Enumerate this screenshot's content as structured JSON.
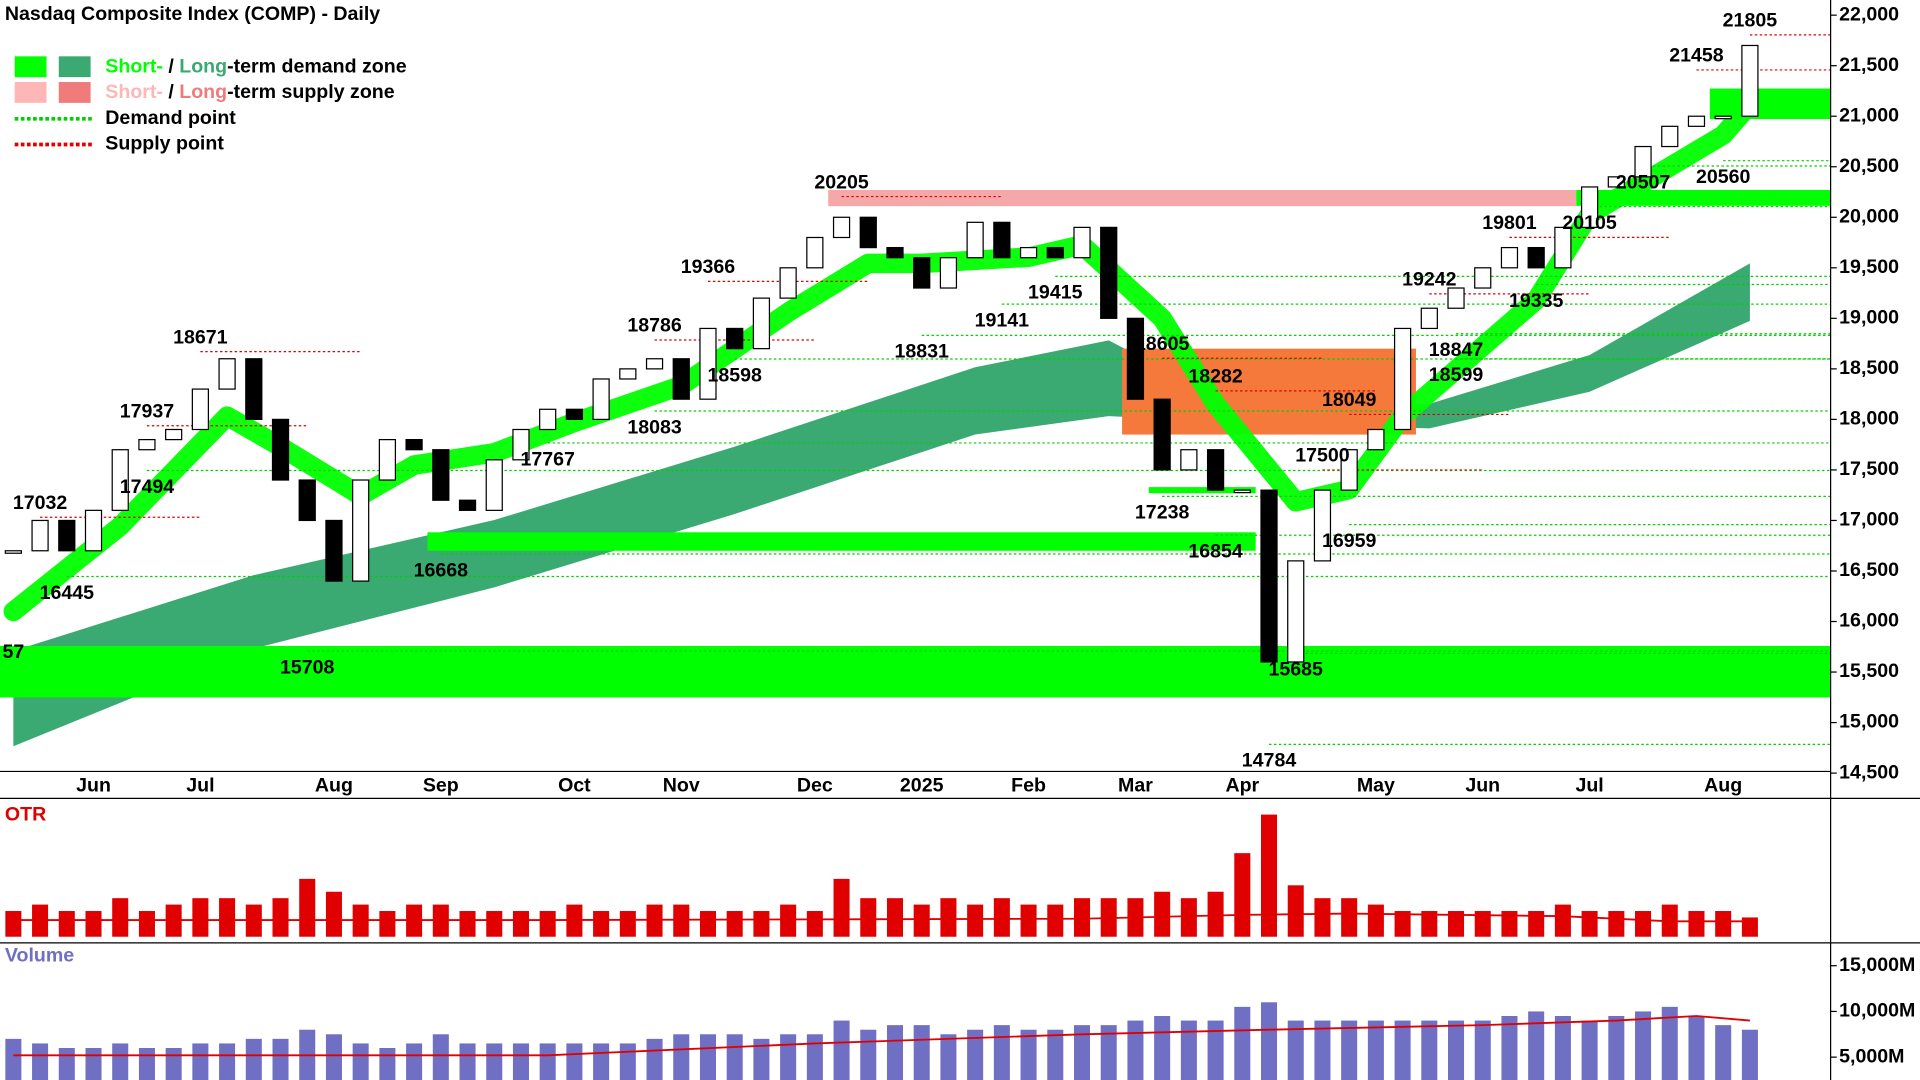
{
  "chart_data": [
    {
      "type": "candlestick",
      "title": "Nasdaq Composite Index (COMP) - Daily",
      "legend": [
        {
          "parts": [
            "Short-",
            " / ",
            "Long",
            "-term demand zone"
          ],
          "colors": [
            "#00ff00",
            "#3aaa72"
          ]
        },
        {
          "parts": [
            "Short-",
            " / ",
            "Long",
            "-term supply zone"
          ],
          "colors": [
            "#ffb6b6",
            "#f07b7b"
          ]
        },
        {
          "parts": [
            "Demand point"
          ],
          "colors": [
            "#00d000"
          ]
        },
        {
          "parts": [
            "Supply point"
          ],
          "colors": [
            "#e00000"
          ]
        }
      ],
      "categories": [
        null,
        null,
        null,
        "Jun",
        null,
        null,
        null,
        "Jul",
        null,
        null,
        null,
        null,
        "Aug",
        null,
        null,
        null,
        "Sep",
        null,
        null,
        null,
        null,
        "Oct",
        null,
        null,
        null,
        "Nov",
        null,
        null,
        null,
        null,
        "Dec",
        null,
        null,
        null,
        "2025",
        null,
        null,
        null,
        "Feb",
        null,
        null,
        null,
        "Mar",
        null,
        null,
        null,
        "Apr",
        null,
        null,
        null,
        null,
        "May",
        null,
        null,
        null,
        "Jun",
        null,
        null,
        null,
        "Jul",
        null,
        null,
        null,
        null,
        "Aug",
        null
      ],
      "values": [
        16700,
        17000,
        16700,
        17100,
        17700,
        17800,
        17900,
        18300,
        18600,
        18000,
        17400,
        17000,
        16400,
        17400,
        17800,
        17700,
        17200,
        17100,
        17600,
        17900,
        18100,
        18000,
        18400,
        18500,
        18600,
        18200,
        18900,
        18700,
        19200,
        19500,
        19800,
        20000,
        19700,
        19600,
        19300,
        19600,
        19950,
        19600,
        19700,
        19600,
        19900,
        19000,
        18200,
        17500,
        17700,
        17300,
        17300,
        15600,
        16600,
        17300,
        17700,
        17900,
        18900,
        19100,
        19300,
        19500,
        19700,
        19500,
        19900,
        20300,
        20400,
        20700,
        20900,
        21000,
        21000,
        21700
      ],
      "annotations": [
        {
          "week": 1,
          "value": 17032
        },
        {
          "week": 2,
          "value": 16445
        },
        {
          "week": 5,
          "value": 17937
        },
        {
          "week": 5,
          "value": 17494
        },
        {
          "week": 7,
          "value": 18671
        },
        {
          "week": 11,
          "value": 15708
        },
        {
          "week": 16,
          "value": 16668
        },
        {
          "week": 20,
          "value": 17767
        },
        {
          "week": 24,
          "value": 18083
        },
        {
          "week": 24,
          "value": 18786
        },
        {
          "week": 27,
          "value": 18598
        },
        {
          "week": 26,
          "value": 19366
        },
        {
          "week": 31,
          "value": 20205
        },
        {
          "week": 34,
          "value": 18831
        },
        {
          "week": 37,
          "value": 19141
        },
        {
          "week": 39,
          "value": 19415
        },
        {
          "week": 43,
          "value": 18605
        },
        {
          "week": 43,
          "value": 17238
        },
        {
          "week": 45,
          "value": 18282
        },
        {
          "week": 45,
          "value": 16854
        },
        {
          "week": 47,
          "value": 14784
        },
        {
          "week": 48,
          "value": 15685
        },
        {
          "week": 50,
          "value": 16959
        },
        {
          "week": 49,
          "value": 17500
        },
        {
          "week": 50,
          "value": 18049
        },
        {
          "week": 54,
          "value": 18599
        },
        {
          "week": 54,
          "value": 18847
        },
        {
          "week": 53,
          "value": 19242
        },
        {
          "week": 56,
          "value": 19801
        },
        {
          "week": 57,
          "value": 19335
        },
        {
          "week": 59,
          "value": 20105
        },
        {
          "week": 61,
          "value": 20507
        },
        {
          "week": 64,
          "value": 20560
        },
        {
          "week": 63,
          "value": 21458
        },
        {
          "week": 65,
          "value": 21805
        }
      ],
      "edge_label": "57",
      "demand_zones": [
        {
          "start": 0,
          "low": 15249,
          "high": 15758,
          "color": "#00ff00"
        },
        {
          "start": 16,
          "end": 46,
          "low": 16700,
          "high": 16883,
          "color": "#00ff00"
        },
        {
          "start": 43,
          "end": 46,
          "low": 17270,
          "high": 17330,
          "color": "#00ff00"
        },
        {
          "start": 59,
          "low": 20113,
          "high": 20270,
          "color": "#00ff00"
        },
        {
          "start": 64,
          "low": 20972,
          "high": 21274,
          "color": "#00ff00"
        }
      ],
      "supply_zones": [
        {
          "start": 31,
          "end": 58,
          "low": 20110,
          "high": 20270,
          "color": "#f5a8a8"
        },
        {
          "start": 42,
          "end": 52,
          "low": 17850,
          "high": 18700,
          "color": "#f4793b"
        }
      ],
      "long_term_band": {
        "color": "#3aaa72",
        "weeks": [
          0,
          9,
          18,
          27,
          36,
          41,
          46,
          53,
          59,
          65
        ],
        "upper": [
          15709,
          16459,
          17004,
          17730,
          18516,
          18782,
          18092,
          18153,
          18637,
          19544
        ],
        "lower": [
          14766,
          15733,
          16338,
          17064,
          17850,
          18032,
          17971,
          17911,
          18274,
          18975
        ]
      },
      "short_term_band": {
        "color": "#00ff00",
        "weeks": [
          0,
          4,
          8,
          10,
          13,
          15,
          18,
          21,
          25,
          29,
          32,
          34,
          38,
          40,
          43,
          45,
          48,
          50,
          52,
          57,
          59,
          64,
          65
        ],
        "values": [
          16100,
          16943,
          18032,
          17730,
          17246,
          17548,
          17669,
          17971,
          18334,
          19060,
          19544,
          19544,
          19605,
          19726,
          19000,
          18153,
          17185,
          17306,
          18032,
          19181,
          20028,
          20814,
          21117
        ]
      },
      "ylim": [
        14250,
        22150
      ],
      "yticks": [
        {
          "value": 14500,
          "label": "14,500"
        },
        {
          "value": 15000,
          "label": "15,000"
        },
        {
          "value": 15500,
          "label": "15,500"
        },
        {
          "value": 16000,
          "label": "16,000"
        },
        {
          "value": 16500,
          "label": "16,500"
        },
        {
          "value": 17000,
          "label": "17,000"
        },
        {
          "value": 17500,
          "label": "17,500"
        },
        {
          "value": 18000,
          "label": "18,000"
        },
        {
          "value": 18500,
          "label": "18,500"
        },
        {
          "value": 19000,
          "label": "19,000"
        },
        {
          "value": 19500,
          "label": "19,500"
        },
        {
          "value": 20000,
          "label": "20,000"
        },
        {
          "value": 20500,
          "label": "20,500"
        },
        {
          "value": 21000,
          "label": "21,000"
        },
        {
          "value": 21500,
          "label": "21,500"
        },
        {
          "value": 22000,
          "label": "22,000"
        }
      ]
    },
    {
      "type": "bar",
      "title": "OTR",
      "color": "#e00000",
      "values": [
        2,
        2.5,
        2,
        2,
        3,
        2,
        2.5,
        3,
        3,
        2.5,
        3,
        4.5,
        3.5,
        2.5,
        2,
        2.5,
        2.5,
        2,
        2,
        2,
        2,
        2.5,
        2,
        2,
        2.5,
        2.5,
        2,
        2,
        2,
        2.5,
        2,
        4.5,
        3,
        3,
        2.5,
        3,
        2.5,
        3,
        2.5,
        2.5,
        3,
        3,
        3,
        3.5,
        3,
        3.5,
        6.5,
        9.5,
        4,
        3,
        3,
        2.5,
        2,
        2,
        2,
        2,
        2,
        2,
        2.5,
        2,
        2,
        2,
        2.5,
        2,
        2,
        1.5
      ],
      "average": {
        "color": "#e00000",
        "weeks": [
          0,
          20,
          40,
          46,
          50,
          58,
          62,
          65
        ],
        "values": [
          1.3,
          1.3,
          1.4,
          1.7,
          1.8,
          1.6,
          1.2,
          1.2
        ]
      },
      "ylim": [
        0,
        10
      ]
    },
    {
      "type": "bar",
      "title": "Volume",
      "color": "#6f6fc4",
      "values": [
        7000,
        6500,
        6000,
        6000,
        6500,
        6000,
        6000,
        6500,
        6500,
        7000,
        7000,
        8000,
        7500,
        6500,
        6000,
        6500,
        7500,
        6500,
        6500,
        6500,
        6500,
        6500,
        6500,
        6500,
        7000,
        7500,
        7500,
        7500,
        7000,
        7500,
        7500,
        9000,
        8000,
        8500,
        8500,
        7500,
        8000,
        8500,
        8000,
        8000,
        8500,
        8500,
        9000,
        9500,
        9000,
        9000,
        10500,
        11000,
        9000,
        9000,
        9000,
        9000,
        9000,
        9000,
        9000,
        9000,
        9500,
        10000,
        9500,
        9000,
        9500,
        10000,
        10500,
        9500,
        8500,
        8000
      ],
      "average": {
        "color": "#e00000",
        "weeks": [
          0,
          20,
          30,
          40,
          47,
          55,
          60,
          63,
          65
        ],
        "values": [
          5200,
          5200,
          6500,
          7500,
          8000,
          8500,
          9000,
          9500,
          9000
        ]
      },
      "ylim": [
        2500,
        17500
      ],
      "yticks": [
        {
          "value": 5000,
          "label": "5,000M"
        },
        {
          "value": 10000,
          "label": "10,000M"
        },
        {
          "value": 15000,
          "label": "15,000M"
        }
      ]
    }
  ]
}
